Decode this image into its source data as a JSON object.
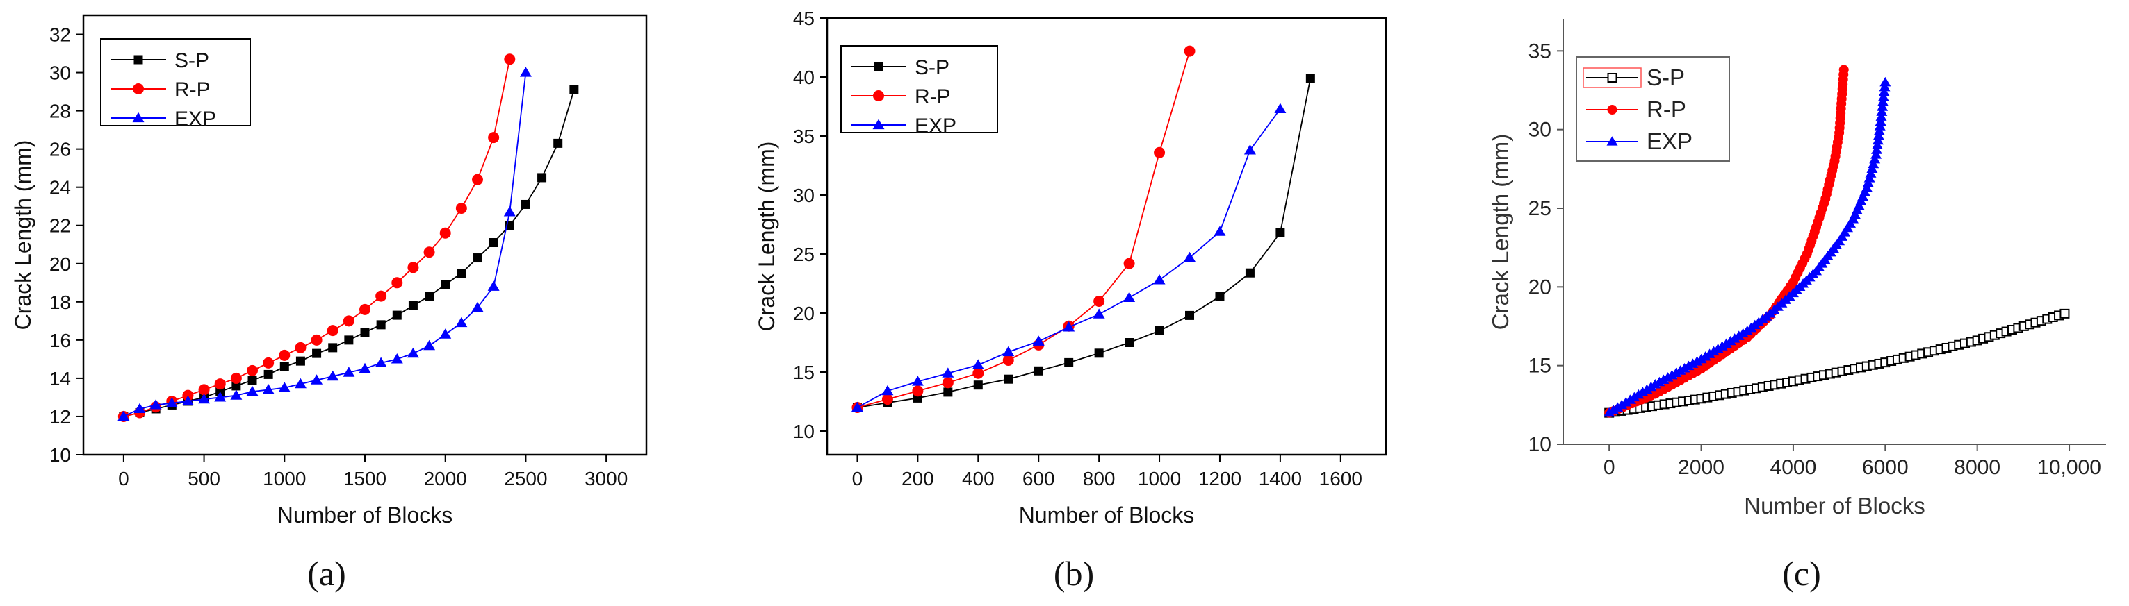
{
  "chart_data": [
    {
      "type": "line",
      "panel_label": "(a)",
      "xlabel": "Number of Blocks",
      "ylabel": "Crack Length (mm)",
      "xlim": [
        -250,
        3250
      ],
      "ylim": [
        10,
        33
      ],
      "xticks": [
        0,
        500,
        1000,
        1500,
        2000,
        2500,
        3000
      ],
      "xtick_labels": [
        "0",
        "500",
        "1000",
        "1500",
        "2000",
        "2500",
        "3000"
      ],
      "yticks": [
        10,
        12,
        14,
        16,
        18,
        20,
        22,
        24,
        26,
        28,
        30,
        32
      ],
      "ytick_labels": [
        "10",
        "12",
        "14",
        "16",
        "18",
        "20",
        "22",
        "24",
        "26",
        "28",
        "30",
        "32"
      ],
      "legend_position": "top-left",
      "series": [
        {
          "name": "S-P",
          "color": "#000000",
          "marker": "square",
          "x": [
            0,
            100,
            200,
            300,
            400,
            500,
            600,
            700,
            800,
            900,
            1000,
            1100,
            1200,
            1300,
            1400,
            1500,
            1600,
            1700,
            1800,
            1900,
            2000,
            2100,
            2200,
            2300,
            2400,
            2500,
            2600,
            2700,
            2800
          ],
          "y": [
            12.0,
            12.2,
            12.4,
            12.6,
            12.8,
            13.0,
            13.3,
            13.6,
            13.9,
            14.2,
            14.6,
            14.9,
            15.3,
            15.6,
            16.0,
            16.4,
            16.8,
            17.3,
            17.8,
            18.3,
            18.9,
            19.5,
            20.3,
            21.1,
            22.0,
            23.1,
            24.5,
            26.3,
            29.1
          ]
        },
        {
          "name": "R-P",
          "color": "#ff0000",
          "marker": "circle",
          "x": [
            0,
            100,
            200,
            300,
            400,
            500,
            600,
            700,
            800,
            900,
            1000,
            1100,
            1200,
            1300,
            1400,
            1500,
            1600,
            1700,
            1800,
            1900,
            2000,
            2100,
            2200,
            2300,
            2400
          ],
          "y": [
            12.0,
            12.2,
            12.5,
            12.8,
            13.1,
            13.4,
            13.7,
            14.0,
            14.4,
            14.8,
            15.2,
            15.6,
            16.0,
            16.5,
            17.0,
            17.6,
            18.3,
            19.0,
            19.8,
            20.6,
            21.6,
            22.9,
            24.4,
            26.6,
            30.7
          ]
        },
        {
          "name": "EXP",
          "color": "#0000ff",
          "marker": "triangle",
          "x": [
            0,
            100,
            200,
            300,
            400,
            500,
            600,
            700,
            800,
            900,
            1000,
            1100,
            1200,
            1300,
            1400,
            1500,
            1600,
            1700,
            1800,
            1900,
            2000,
            2100,
            2200,
            2300,
            2400,
            2500
          ],
          "y": [
            12.0,
            12.4,
            12.6,
            12.7,
            12.8,
            12.9,
            13.0,
            13.1,
            13.3,
            13.4,
            13.5,
            13.7,
            13.9,
            14.1,
            14.3,
            14.5,
            14.8,
            15.0,
            15.3,
            15.7,
            16.3,
            16.9,
            17.7,
            18.8,
            22.7,
            30.0
          ]
        }
      ]
    },
    {
      "type": "line",
      "panel_label": "(b)",
      "xlabel": "Number of Blocks",
      "ylabel": "Crack Length (mm)",
      "xlim": [
        -100,
        1750
      ],
      "ylim": [
        8,
        45
      ],
      "xticks": [
        0,
        200,
        400,
        600,
        800,
        1000,
        1200,
        1400,
        1600
      ],
      "xtick_labels": [
        "0",
        "200",
        "400",
        "600",
        "800",
        "1000",
        "1200",
        "1400",
        "1600"
      ],
      "yticks": [
        10,
        15,
        20,
        25,
        30,
        35,
        40,
        45
      ],
      "ytick_labels": [
        "10",
        "15",
        "20",
        "25",
        "30",
        "35",
        "40",
        "45"
      ],
      "legend_position": "top-left",
      "series": [
        {
          "name": "S-P",
          "color": "#000000",
          "marker": "square",
          "x": [
            0,
            100,
            200,
            300,
            400,
            500,
            600,
            700,
            800,
            900,
            1000,
            1100,
            1200,
            1300,
            1400,
            1500
          ],
          "y": [
            12.0,
            12.4,
            12.8,
            13.3,
            13.9,
            14.4,
            15.1,
            15.8,
            16.6,
            17.5,
            18.5,
            19.8,
            21.4,
            23.4,
            26.8,
            39.9
          ]
        },
        {
          "name": "R-P",
          "color": "#ff0000",
          "marker": "circle",
          "x": [
            0,
            100,
            200,
            300,
            400,
            500,
            600,
            700,
            800,
            900,
            1000,
            1100
          ],
          "y": [
            12.0,
            12.7,
            13.4,
            14.1,
            14.9,
            16.0,
            17.3,
            18.9,
            21.0,
            24.2,
            33.6,
            42.2
          ]
        },
        {
          "name": "EXP",
          "color": "#0000ff",
          "marker": "triangle",
          "x": [
            0,
            100,
            200,
            300,
            400,
            500,
            600,
            700,
            800,
            900,
            1000,
            1100,
            1200,
            1300,
            1400
          ],
          "y": [
            12.0,
            13.4,
            14.2,
            14.9,
            15.6,
            16.7,
            17.6,
            18.8,
            19.9,
            21.3,
            22.8,
            24.7,
            26.9,
            33.8,
            37.3
          ]
        }
      ]
    },
    {
      "type": "line",
      "panel_label": "(c)",
      "xlabel": "Number of Blocks",
      "ylabel": "Crack Length (mm)",
      "xlim": [
        -1000,
        10800
      ],
      "ylim": [
        10,
        37
      ],
      "xticks": [
        0,
        2000,
        4000,
        6000,
        8000,
        10000
      ],
      "xtick_labels": [
        "0",
        "2000",
        "4000",
        "6000",
        "8000",
        "10,000"
      ],
      "yticks": [
        10,
        15,
        20,
        25,
        30,
        35
      ],
      "ytick_labels": [
        "10",
        "15",
        "20",
        "25",
        "30",
        "35"
      ],
      "legend_position": "top-left",
      "series": [
        {
          "name": "S-P",
          "color": "#000000",
          "marker": "open-square",
          "x": [
            0,
            2000,
            4000,
            6000,
            8000,
            9900
          ],
          "y": [
            12.0,
            12.9,
            14.0,
            15.2,
            16.6,
            18.3
          ]
        },
        {
          "name": "R-P",
          "color": "#ff0000",
          "marker": "circle",
          "x": [
            0,
            1000,
            2000,
            3000,
            3500,
            4000,
            4300,
            4500,
            4700,
            4900,
            5000,
            5100
          ],
          "y": [
            12.0,
            13.2,
            14.8,
            16.8,
            18.2,
            20.3,
            22.1,
            23.8,
            25.6,
            28.0,
            29.8,
            33.8
          ]
        },
        {
          "name": "EXP",
          "color": "#0000ff",
          "marker": "triangle",
          "x": [
            0,
            1000,
            2000,
            3000,
            3500,
            4000,
            4500,
            5000,
            5300,
            5600,
            5800,
            5900,
            6000
          ],
          "y": [
            12.0,
            13.8,
            15.4,
            17.2,
            18.3,
            19.6,
            21.0,
            22.9,
            24.3,
            26.3,
            28.4,
            30.5,
            33.0
          ]
        }
      ]
    }
  ]
}
